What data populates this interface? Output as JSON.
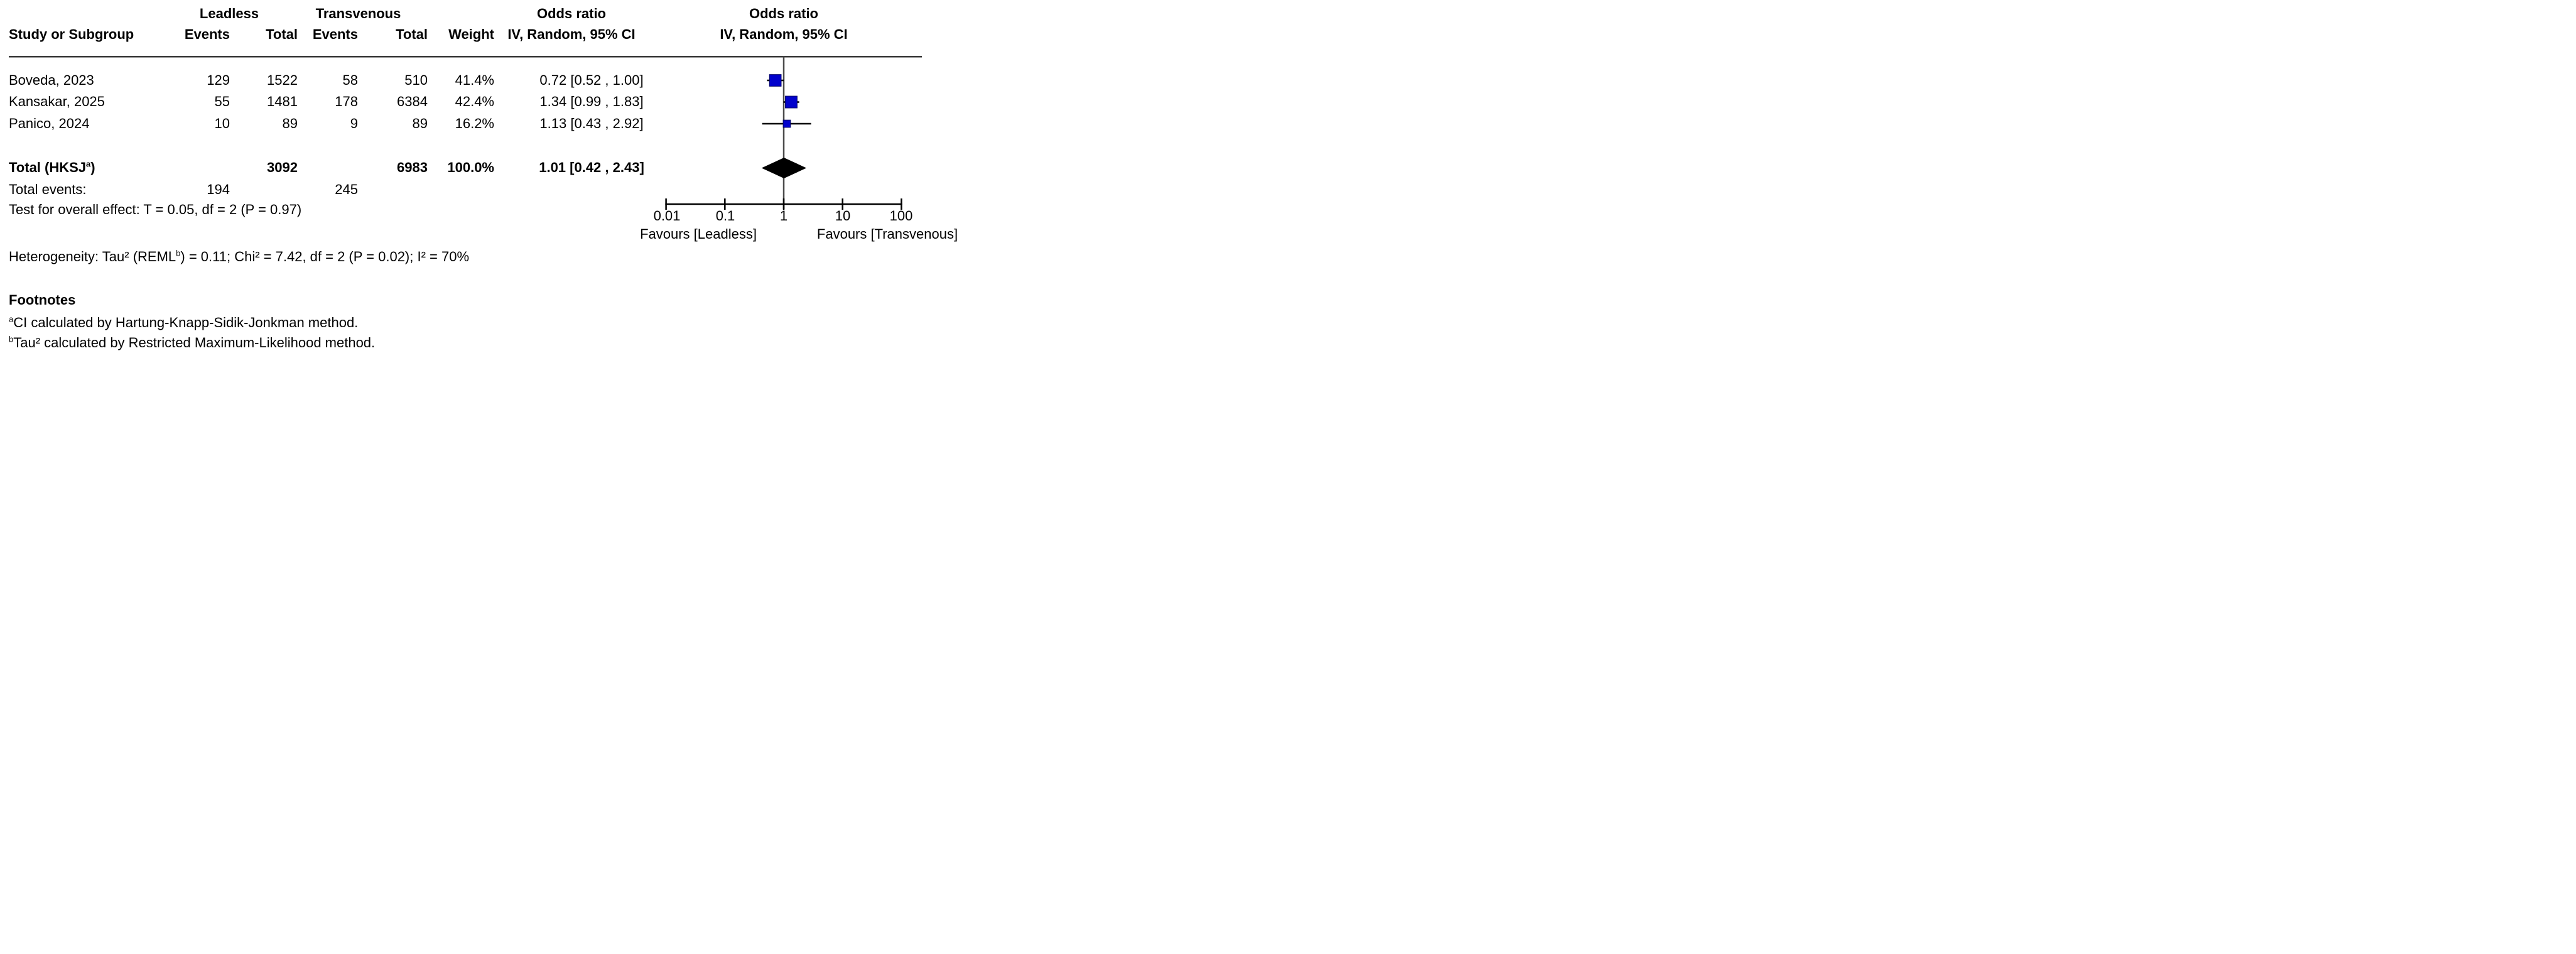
{
  "figure": {
    "headers": {
      "group_left": "Leadless",
      "group_right": "Transvenous",
      "study": "Study or Subgroup",
      "events": "Events",
      "total": "Total",
      "weight": "Weight",
      "or_title": "Odds ratio",
      "or_method": "IV, Random, 95% CI"
    },
    "studies": [
      {
        "name": "Boveda, 2023",
        "events_leadless": "129",
        "total_leadless": "1522",
        "events_transvenous": "58",
        "total_transvenous": "510",
        "weight": "41.4%",
        "or_ci": "0.72 [0.52 , 1.00]"
      },
      {
        "name": "Kansakar, 2025",
        "events_leadless": "55",
        "total_leadless": "1481",
        "events_transvenous": "178",
        "total_transvenous": "6384",
        "weight": "42.4%",
        "or_ci": "1.34 [0.99 , 1.83]"
      },
      {
        "name": "Panico, 2024",
        "events_leadless": "10",
        "total_leadless": "89",
        "events_transvenous": "9",
        "total_transvenous": "89",
        "weight": "16.2%",
        "or_ci": "1.13 [0.43 , 2.92]"
      }
    ],
    "total_row": {
      "label_prefix": "Total (HKSJ",
      "label_sup": "a",
      "label_suffix": ")",
      "total_leadless": "3092",
      "total_transvenous": "6983",
      "weight": "100.0%",
      "or_ci": "1.01 [0.42 , 2.43]"
    },
    "total_events": {
      "label": "Total events:",
      "leadless": "194",
      "transvenous": "245"
    },
    "overall_effect_text": "Test for overall effect: T = 0.05, df = 2 (P = 0.97)",
    "heterogeneity": {
      "prefix": "Heterogeneity: Tau² (REML",
      "sup": "b",
      "suffix": ") = 0.11; Chi² = 7.42, df = 2 (P = 0.02); I² = 70%"
    },
    "axis": {
      "tick_labels": [
        "0.01",
        "0.1",
        "1",
        "10",
        "100"
      ],
      "favours_left": "Favours [Leadless]",
      "favours_right": "Favours [Transvenous]"
    },
    "footnotes": {
      "title": "Footnotes",
      "items": [
        {
          "sup": "a",
          "text": "CI calculated by Hartung-Knapp-Sidik-Jonkman method."
        },
        {
          "sup": "b",
          "text": "Tau² calculated by Restricted Maximum-Likelihood method."
        }
      ]
    },
    "colors": {
      "square_fill": "#0202CC",
      "square_border": "#000066",
      "diamond": "#000000",
      "ci_line": "#000000",
      "null_line": "#4a4a4a",
      "rule_line": "#3a3a3a",
      "axis_line": "#000000"
    }
  },
  "chart_data": {
    "type": "forest",
    "effect_measure": "Odds ratio, IV, Random, 95% CI",
    "x_scale": "log10",
    "x_ticks": [
      0.01,
      0.1,
      1,
      10,
      100
    ],
    "xlim": [
      0.01,
      100
    ],
    "null_value": 1,
    "studies": [
      {
        "name": "Boveda, 2023",
        "events_leadless": 129,
        "total_leadless": 1522,
        "events_transvenous": 58,
        "total_transvenous": 510,
        "weight_pct": 41.4,
        "or": 0.72,
        "ci_low": 0.52,
        "ci_high": 1.0
      },
      {
        "name": "Kansakar, 2025",
        "events_leadless": 55,
        "total_leadless": 1481,
        "events_transvenous": 178,
        "total_transvenous": 6384,
        "weight_pct": 42.4,
        "or": 1.34,
        "ci_low": 0.99,
        "ci_high": 1.83
      },
      {
        "name": "Panico, 2024",
        "events_leadless": 10,
        "total_leadless": 89,
        "events_transvenous": 9,
        "total_transvenous": 89,
        "weight_pct": 16.2,
        "or": 1.13,
        "ci_low": 0.43,
        "ci_high": 2.92
      }
    ],
    "total": {
      "label": "Total (HKSJ)",
      "total_leadless": 3092,
      "total_transvenous": 6983,
      "total_events_leadless": 194,
      "total_events_transvenous": 245,
      "weight_pct": 100.0,
      "or": 1.01,
      "ci_low": 0.42,
      "ci_high": 2.43
    },
    "overall_effect": {
      "T": 0.05,
      "df": 2,
      "P": 0.97
    },
    "heterogeneity": {
      "tau2": 0.11,
      "chi2": 7.42,
      "df": 2,
      "P": 0.02,
      "I2_pct": 70
    },
    "favours_left": "Favours [Leadless]",
    "favours_right": "Favours [Transvenous]"
  }
}
